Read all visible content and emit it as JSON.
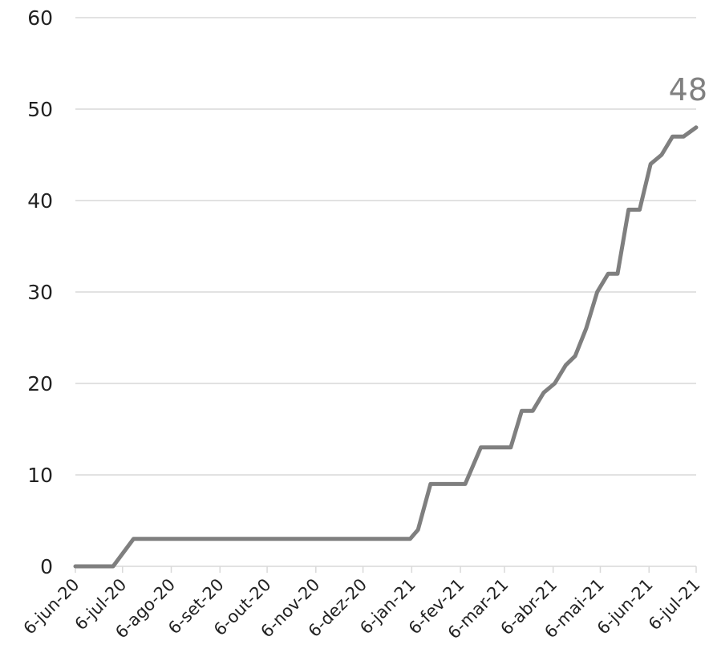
{
  "chart_data": {
    "type": "line",
    "title": "",
    "xlabel": "",
    "ylabel": "",
    "ylim": [
      0,
      60
    ],
    "yticks": [
      0,
      10,
      20,
      30,
      40,
      50,
      60
    ],
    "x_tick_labels": [
      "6-jun-20",
      "6-jul-20",
      "6-ago-20",
      "6-set-20",
      "6-out-20",
      "6-nov-20",
      "6-dez-20",
      "6-jan-21",
      "6-fev-21",
      "6-mar-21",
      "6-abr-21",
      "6-mai-21",
      "6-jun-21",
      "6-jul-21"
    ],
    "x_tick_dates": [
      "2020-06-06",
      "2020-07-06",
      "2020-08-06",
      "2020-09-06",
      "2020-10-06",
      "2020-11-06",
      "2020-12-06",
      "2021-01-06",
      "2021-02-06",
      "2021-03-06",
      "2021-04-06",
      "2021-05-06",
      "2021-06-06",
      "2021-07-06"
    ],
    "grid": true,
    "line_color": "#7f7f7f",
    "end_label": "48",
    "series": [
      {
        "points": [
          [
            "2020-06-06",
            0
          ],
          [
            "2020-06-30",
            0
          ],
          [
            "2020-07-13",
            3
          ],
          [
            "2021-01-05",
            3
          ],
          [
            "2021-01-10",
            4
          ],
          [
            "2021-01-18",
            9
          ],
          [
            "2021-02-09",
            9
          ],
          [
            "2021-02-19",
            13
          ],
          [
            "2021-03-10",
            13
          ],
          [
            "2021-03-17",
            17
          ],
          [
            "2021-03-24",
            17
          ],
          [
            "2021-03-31",
            19
          ],
          [
            "2021-04-07",
            20
          ],
          [
            "2021-04-14",
            22
          ],
          [
            "2021-04-20",
            23
          ],
          [
            "2021-04-27",
            26
          ],
          [
            "2021-05-04",
            30
          ],
          [
            "2021-05-11",
            32
          ],
          [
            "2021-05-17",
            32
          ],
          [
            "2021-05-24",
            39
          ],
          [
            "2021-05-31",
            39
          ],
          [
            "2021-06-07",
            44
          ],
          [
            "2021-06-14",
            45
          ],
          [
            "2021-06-21",
            47
          ],
          [
            "2021-06-28",
            47
          ],
          [
            "2021-07-06",
            48
          ]
        ]
      }
    ]
  }
}
